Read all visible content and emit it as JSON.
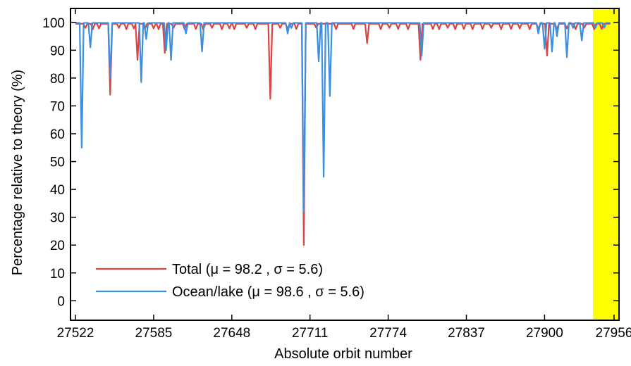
{
  "chart_data": {
    "type": "line",
    "title": "",
    "xlabel": "Absolute orbit number",
    "ylabel": "Percentage relative to theory (%)",
    "xlim": [
      27518,
      27960
    ],
    "ylim": [
      -7,
      105
    ],
    "xticks": [
      27522,
      27585,
      27648,
      27711,
      27774,
      27837,
      27900,
      27956
    ],
    "yticks": [
      0,
      10,
      20,
      30,
      40,
      50,
      60,
      70,
      80,
      90,
      100
    ],
    "grid": false,
    "legend_position": "bottom-left",
    "highlight": {
      "x_start": 27939,
      "x_end": 27960,
      "color": "#ffff00"
    },
    "series": [
      {
        "name": "Total (μ = 98.2 , σ = 5.6)",
        "color": "#d94545",
        "baseline": 99.5,
        "x_range": [
          27522,
          27953
        ],
        "dips": [
          [
            27530,
            98.0
          ],
          [
            27536,
            97.5
          ],
          [
            27541,
            97.8
          ],
          [
            27550,
            74.0
          ],
          [
            27557,
            98.0
          ],
          [
            27563,
            97.5
          ],
          [
            27569,
            97.8
          ],
          [
            27572,
            86.5
          ],
          [
            27578,
            97.5
          ],
          [
            27585,
            97.8
          ],
          [
            27589,
            97.5
          ],
          [
            27594,
            89.0
          ],
          [
            27601,
            98.0
          ],
          [
            27610,
            97.5
          ],
          [
            27619,
            97.6
          ],
          [
            27625,
            97.4
          ],
          [
            27632,
            98.0
          ],
          [
            27640,
            97.5
          ],
          [
            27646,
            97.8
          ],
          [
            27650,
            97.5
          ],
          [
            27660,
            98.0
          ],
          [
            27667,
            97.5
          ],
          [
            27679,
            72.5
          ],
          [
            27687,
            98.0
          ],
          [
            27693,
            97.5
          ],
          [
            27700,
            97.6
          ],
          [
            27706,
            20.0
          ],
          [
            27716,
            98.0
          ],
          [
            27732,
            97.5
          ],
          [
            27746,
            97.6
          ],
          [
            27757,
            92.5
          ],
          [
            27768,
            97.5
          ],
          [
            27775,
            98.0
          ],
          [
            27782,
            97.6
          ],
          [
            27790,
            97.5
          ],
          [
            27800,
            86.5
          ],
          [
            27810,
            97.6
          ],
          [
            27815,
            97.5
          ],
          [
            27822,
            98.0
          ],
          [
            27828,
            97.5
          ],
          [
            27835,
            97.6
          ],
          [
            27842,
            97.5
          ],
          [
            27850,
            97.6
          ],
          [
            27857,
            98.0
          ],
          [
            27865,
            97.5
          ],
          [
            27873,
            97.6
          ],
          [
            27880,
            97.8
          ],
          [
            27888,
            97.5
          ],
          [
            27895,
            97.6
          ],
          [
            27902,
            88.0
          ],
          [
            27910,
            97.5
          ],
          [
            27918,
            97.8
          ],
          [
            27925,
            97.5
          ],
          [
            27932,
            98.0
          ],
          [
            27940,
            97.5
          ],
          [
            27946,
            97.6
          ]
        ]
      },
      {
        "name": "Ocean/lake (μ = 98.6 , σ = 5.6)",
        "color": "#3b8fe0",
        "baseline": 99.8,
        "x_range": [
          27522,
          27953
        ],
        "dips": [
          [
            27527,
            55.0
          ],
          [
            27534,
            91.0
          ],
          [
            27550,
            80.0
          ],
          [
            27575,
            78.5
          ],
          [
            27579,
            94.0
          ],
          [
            27595,
            90.0
          ],
          [
            27599,
            86.5
          ],
          [
            27611,
            96.0
          ],
          [
            27624,
            89.5
          ],
          [
            27693,
            96.0
          ],
          [
            27696,
            98.0
          ],
          [
            27706,
            32.0
          ],
          [
            27718,
            86.0
          ],
          [
            27722,
            44.5
          ],
          [
            27727,
            73.5
          ],
          [
            27801,
            88.0
          ],
          [
            27895,
            96.0
          ],
          [
            27900,
            90.5
          ],
          [
            27906,
            89.5
          ],
          [
            27910,
            95.0
          ],
          [
            27918,
            87.5
          ],
          [
            27923,
            98.0
          ],
          [
            27930,
            93.5
          ],
          [
            27941,
            98.0
          ],
          [
            27948,
            98.0
          ]
        ]
      }
    ]
  }
}
